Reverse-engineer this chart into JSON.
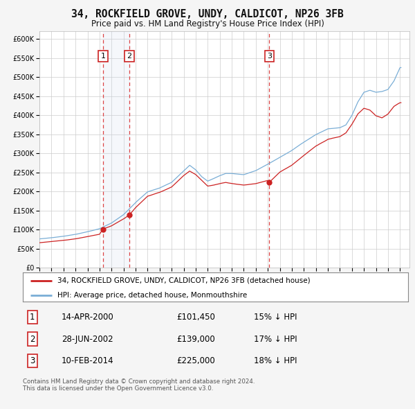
{
  "title": "34, ROCKFIELD GROVE, UNDY, CALDICOT, NP26 3FB",
  "subtitle": "Price paid vs. HM Land Registry's House Price Index (HPI)",
  "legend_label_red": "34, ROCKFIELD GROVE, UNDY, CALDICOT, NP26 3FB (detached house)",
  "legend_label_blue": "HPI: Average price, detached house, Monmouthshire",
  "footer": "Contains HM Land Registry data © Crown copyright and database right 2024.\nThis data is licensed under the Open Government Licence v3.0.",
  "transactions": [
    {
      "num": 1,
      "date": "14-APR-2000",
      "price": 101450,
      "pct": "15%",
      "dir": "↓",
      "year": 2000.29
    },
    {
      "num": 2,
      "date": "28-JUN-2002",
      "price": 139000,
      "pct": "17%",
      "dir": "↓",
      "year": 2002.49
    },
    {
      "num": 3,
      "date": "10-FEB-2014",
      "price": 225000,
      "pct": "18%",
      "dir": "↓",
      "year": 2014.12
    }
  ],
  "hpi_color": "#7aaed6",
  "price_color": "#cc2222",
  "vline_color": "#dd4444",
  "vline_fill": "#ddeeff",
  "ylim": [
    0,
    620000
  ],
  "yticks": [
    0,
    50000,
    100000,
    150000,
    200000,
    250000,
    300000,
    350000,
    400000,
    450000,
    500000,
    550000,
    600000
  ],
  "xlim_start": 1995.0,
  "xlim_end": 2025.8,
  "background_color": "#f5f5f5",
  "plot_background": "#ffffff",
  "grid_color": "#cccccc"
}
